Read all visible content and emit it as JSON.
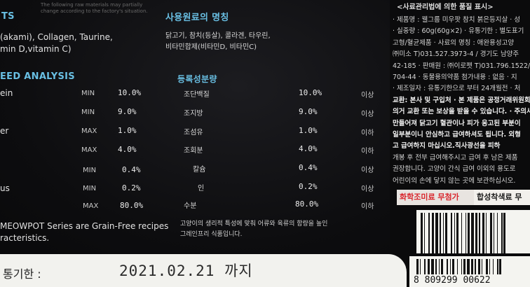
{
  "left_panel": {
    "top_note_line1": "The following raw materials may partially",
    "top_note_line2": "change according to the factory's situation.",
    "ingredients_title_fragment": "TS",
    "ingredients_en_line1": "(akami), Collagen, Taurine,",
    "ingredients_en_line2": "min D,vitamin C)",
    "analysis_title": "EED ANALYSIS",
    "analysis_rows": [
      {
        "label": "ein",
        "bound": "MIN",
        "value": "10.0%"
      },
      {
        "label": "",
        "bound": "MIN",
        "value": "9.0%"
      },
      {
        "label": "er",
        "bound": "MAX",
        "value": "1.0%"
      },
      {
        "label": "",
        "bound": "MAX",
        "value": "4.0%"
      },
      {
        "label": "",
        "bound": "MIN",
        "value": "0.4%"
      },
      {
        "label": "us",
        "bound": "MIN",
        "value": "0.2%"
      },
      {
        "label": "",
        "bound": "MAX",
        "value": "80.0%"
      }
    ],
    "grain_free_line1": "MEOWPOT Series are Grain-Free recipes",
    "grain_free_line2": "racteristics."
  },
  "middle_panel": {
    "ingredients_title": "사용원료의 명칭",
    "ingredients_line1": "닭고기, 참치(등살), 콜라겐, 타우린,",
    "ingredients_line2": "비타민합제(비타민D, 비타민C)",
    "analysis_title": "등록성분량",
    "analysis_rows": [
      {
        "label": "조단백질",
        "value": "10.0%",
        "bound": "이상"
      },
      {
        "label": "조지방",
        "value": "9.0%",
        "bound": "이상"
      },
      {
        "label": "조섬유",
        "value": "1.0%",
        "bound": "이하"
      },
      {
        "label": "조회분",
        "value": "4.0%",
        "bound": "이하"
      },
      {
        "label": "칼슘",
        "value": "0.4%",
        "bound": "이상"
      },
      {
        "label": "인",
        "value": "0.2%",
        "bound": "이상"
      },
      {
        "label": "수분",
        "value": "80.0%",
        "bound": "이하"
      }
    ],
    "grain_free_line1": "고양이의 생리적 특성에 맞춰 어류와 육류의 함량을 높인",
    "grain_free_line2": "그레인프리 식품입니다."
  },
  "right_panel": {
    "title": "<사료관리법에 의한 품질 표시>",
    "lines": [
      "· 제품명 : 웰그룹 미우팟 참치 붉은등지살 · 성",
      "· 실중량 : 60g(60g×2) · 유통기한 : 별도표기",
      "고형/혈균제품 · 사료의 명칭 : 애완용성고양",
      "㈜미소 T)031.527.3973-4 / 경기도 남양주",
      "42-185 · 판매원 : ㈜이로펫 T)031.796.1522/",
      "704-44 · 동물용의약품 첨가내용 : 없음 · 지",
      "· 제조일자 : 유통기한으로 부터 24개월전 · 처",
      "교환: 본사 및 구입처 · 본 제품은 공정거래위원회",
      "의거 교환 또는 보상을 받을 수 있습니다. · 주의사",
      "만들어져 닭고기 혈관이나 피가 응고된 부분이",
      "일부분이니 안심하고 급여하셔도 됩니다. 외형",
      "고 급여하지 마십시오.직사광선을 피하",
      "개봉 후 전부 급여해주시고 급여 후 남은 제품",
      "권장합니다. 고양이 간식 급여 이외의 용도로",
      "어린이의 손에 닿지 않는 곳에 보관하십시오."
    ],
    "badge_left": "화학조미료 무첨가",
    "badge_right": "합성착색료 무",
    "barcode_number": "8 809299 00622"
  },
  "bottom_band": {
    "label": "통기한 :",
    "date": "2021.02.21 까지"
  },
  "colors": {
    "background": "#0d0d0f",
    "accent_cyan": "#69bfe3",
    "band": "#f2f2ee",
    "badge_red": "#d9262c"
  }
}
